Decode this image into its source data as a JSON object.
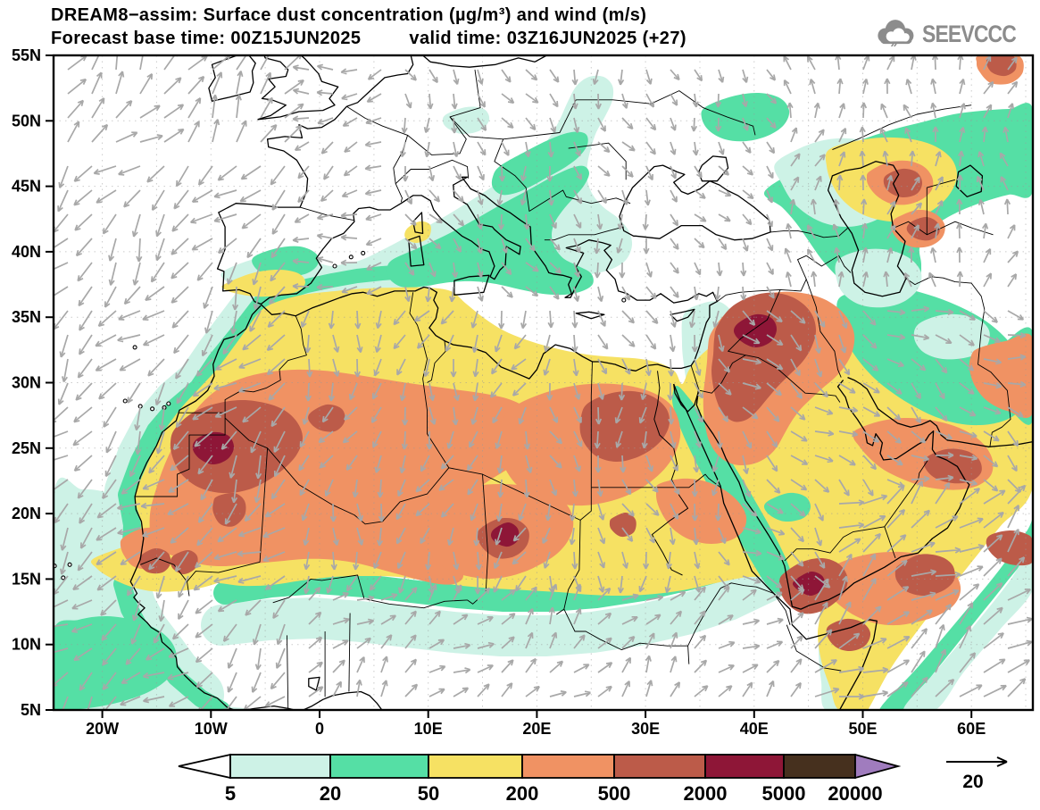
{
  "header": {
    "line1": "DREAM8−assim: Surface dust concentration (µg/m³) and wind (m/s)",
    "base_time": "Forecast base time: 00Z15JUN2025",
    "valid_time": "valid time: 03Z16JUN2025 (+27)"
  },
  "logo": {
    "text": "SEEVCCC"
  },
  "axes": {
    "lat": [
      {
        "label": "55N",
        "deg": 55
      },
      {
        "label": "50N",
        "deg": 50
      },
      {
        "label": "45N",
        "deg": 45
      },
      {
        "label": "40N",
        "deg": 40
      },
      {
        "label": "35N",
        "deg": 35
      },
      {
        "label": "30N",
        "deg": 30
      },
      {
        "label": "25N",
        "deg": 25
      },
      {
        "label": "20N",
        "deg": 20
      },
      {
        "label": "15N",
        "deg": 15
      },
      {
        "label": "10N",
        "deg": 10
      },
      {
        "label": "5N",
        "deg": 5
      }
    ],
    "lon": [
      {
        "label": "20W",
        "deg": -20
      },
      {
        "label": "10W",
        "deg": -10
      },
      {
        "label": "0",
        "deg": 0
      },
      {
        "label": "10E",
        "deg": 10
      },
      {
        "label": "20E",
        "deg": 20
      },
      {
        "label": "30E",
        "deg": 30
      },
      {
        "label": "40E",
        "deg": 40
      },
      {
        "label": "50E",
        "deg": 50
      },
      {
        "label": "60E",
        "deg": 60
      }
    ]
  },
  "colorbar": {
    "labels": [
      "5",
      "20",
      "50",
      "200",
      "500",
      "2000",
      "5000",
      "20000"
    ],
    "segment_colors": [
      "#cdf2e6",
      "#55dfa5",
      "#f6e163",
      "#f09263",
      "#bc5b49",
      "#8e1637",
      "#46301e"
    ],
    "under_color": "#ffffff",
    "over_color": "#a07cbe"
  },
  "wind_reference": {
    "value": "20"
  },
  "style": {
    "arrow_color": "#a8a8a8",
    "coast_color": "#000000",
    "graticule_color": "#999999",
    "logo_color": "#8c8c8c",
    "frame_color": "#000000",
    "land_color": "#ffffff"
  }
}
